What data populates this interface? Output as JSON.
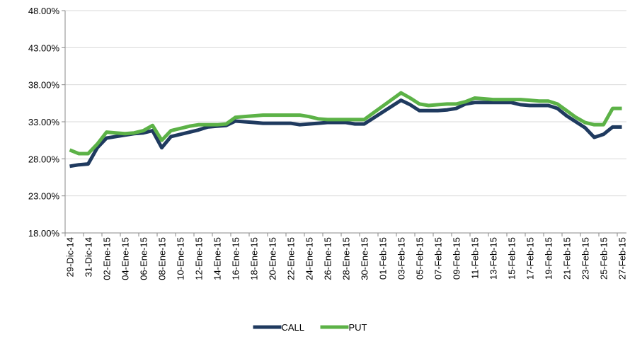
{
  "chart_data": {
    "type": "line",
    "categories": [
      "29-Dic-14",
      null,
      "31-Dic-14",
      null,
      "02-Ene-15",
      null,
      "04-Ene-15",
      null,
      "06-Ene-15",
      null,
      "08-Ene-15",
      null,
      "10-Ene-15",
      null,
      "12-Ene-15",
      null,
      "14-Ene-15",
      null,
      "16-Ene-15",
      null,
      "18-Ene-15",
      null,
      "20-Ene-15",
      null,
      "22-Ene-15",
      null,
      "24-Ene-15",
      null,
      "26-Ene-15",
      null,
      "28-Ene-15",
      null,
      "30-Ene-15",
      null,
      "01-Feb-15",
      null,
      "03-Feb-15",
      null,
      "05-Feb-15",
      null,
      "07-Feb-15",
      null,
      "09-Feb-15",
      null,
      "11-Feb-15",
      null,
      "13-Feb-15",
      null,
      "15-Feb-15",
      null,
      "17-Feb-15",
      null,
      "19-Feb-15",
      null,
      "21-Feb-15",
      null,
      "23-Feb-15",
      null,
      "25-Feb-15",
      null,
      "27-Feb-15"
    ],
    "series": [
      {
        "name": "CALL",
        "color": "#1f3a5f",
        "values": [
          27.0,
          27.2,
          27.3,
          29.5,
          30.8,
          31.0,
          31.2,
          31.4,
          31.5,
          31.8,
          29.5,
          31.0,
          31.3,
          31.6,
          31.9,
          32.3,
          32.4,
          32.5,
          33.1,
          33.0,
          32.9,
          32.8,
          32.8,
          32.8,
          32.8,
          32.6,
          32.7,
          32.8,
          32.9,
          32.9,
          32.9,
          32.7,
          32.7,
          33.5,
          34.3,
          35.1,
          35.9,
          35.3,
          34.5,
          34.5,
          34.5,
          34.6,
          34.8,
          35.4,
          35.6,
          35.6,
          35.6,
          35.6,
          35.6,
          35.3,
          35.2,
          35.2,
          35.2,
          34.8,
          33.8,
          33.0,
          32.2,
          30.9,
          31.3,
          32.3,
          32.3
        ]
      },
      {
        "name": "PUT",
        "color": "#5cb247",
        "values": [
          29.2,
          28.7,
          28.7,
          30.0,
          31.6,
          31.5,
          31.4,
          31.5,
          31.8,
          32.5,
          30.5,
          31.8,
          32.1,
          32.4,
          32.6,
          32.6,
          32.6,
          32.7,
          33.6,
          33.7,
          33.8,
          33.9,
          33.9,
          33.9,
          33.9,
          33.9,
          33.7,
          33.4,
          33.3,
          33.3,
          33.3,
          33.3,
          33.3,
          34.2,
          35.1,
          36.0,
          36.9,
          36.2,
          35.4,
          35.2,
          35.3,
          35.4,
          35.4,
          35.7,
          36.2,
          36.1,
          36.0,
          36.0,
          36.0,
          36.0,
          35.9,
          35.8,
          35.8,
          35.4,
          34.5,
          33.6,
          32.9,
          32.6,
          32.6,
          34.8,
          34.8
        ]
      }
    ],
    "ylim": [
      18,
      48
    ],
    "yticks": [
      {
        "value": 18,
        "label": "18.00%"
      },
      {
        "value": 23,
        "label": "23.00%"
      },
      {
        "value": 28,
        "label": "28.00%"
      },
      {
        "value": 33,
        "label": "33.00%"
      },
      {
        "value": 38,
        "label": "38.00%"
      },
      {
        "value": 43,
        "label": "43.00%"
      },
      {
        "value": 48,
        "label": "48.00%"
      }
    ],
    "grid": true,
    "legend": "bottom"
  }
}
